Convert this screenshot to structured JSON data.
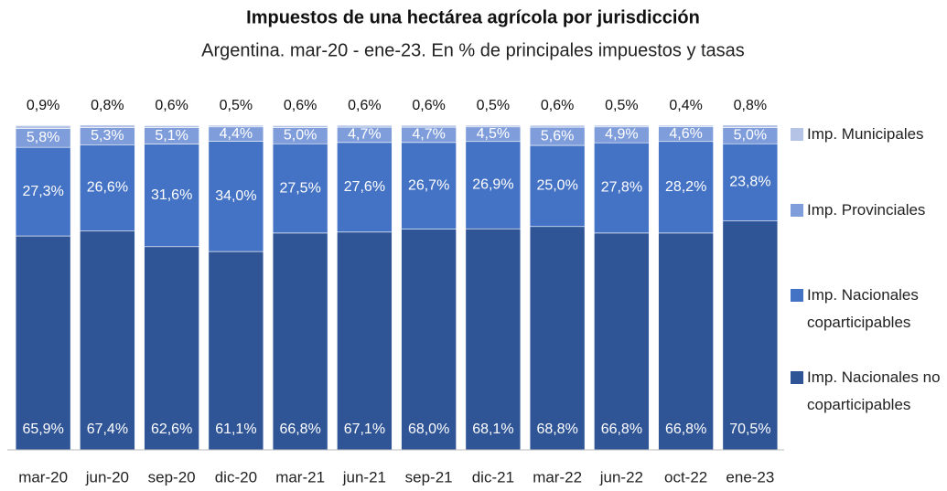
{
  "chart_data": {
    "type": "stacked_bar",
    "title": "Impuestos de una hectárea agrícola por jurisdicción",
    "subtitle": "Argentina. mar-20 - ene-23. En % de principales impuestos y tasas",
    "categories": [
      "mar-20",
      "jun-20",
      "sep-20",
      "dic-20",
      "mar-21",
      "jun-21",
      "sep-21",
      "dic-21",
      "mar-22",
      "jun-22",
      "oct-22",
      "ene-23"
    ],
    "ylim": [
      0,
      100
    ],
    "legend": "right",
    "series": [
      {
        "name": "Imp. Nacionales no coparticipables",
        "color": "#2f5597",
        "values": [
          65.9,
          67.4,
          62.6,
          61.1,
          66.8,
          67.1,
          68.0,
          68.1,
          68.8,
          66.8,
          66.8,
          70.5
        ],
        "value_labels": [
          "65,9%",
          "67,4%",
          "62,6%",
          "61,1%",
          "66,8%",
          "67,1%",
          "68,0%",
          "68,1%",
          "68,8%",
          "66,8%",
          "66,8%",
          "70,5%"
        ]
      },
      {
        "name": "Imp. Nacionales coparticipables",
        "color": "#4472c4",
        "values": [
          27.3,
          26.6,
          31.6,
          34.0,
          27.5,
          27.6,
          26.7,
          26.9,
          25.0,
          27.8,
          28.2,
          23.8
        ],
        "value_labels": [
          "27,3%",
          "26,6%",
          "31,6%",
          "34,0%",
          "27,5%",
          "27,6%",
          "26,7%",
          "26,9%",
          "25,0%",
          "27,8%",
          "28,2%",
          "23,8%"
        ]
      },
      {
        "name": "Imp. Provinciales",
        "color": "#7f9ddb",
        "values": [
          5.8,
          5.3,
          5.1,
          4.4,
          5.0,
          4.7,
          4.7,
          4.5,
          5.6,
          4.9,
          4.6,
          5.0
        ],
        "value_labels": [
          "5,8%",
          "5,3%",
          "5,1%",
          "4,4%",
          "5,0%",
          "4,7%",
          "4,7%",
          "4,5%",
          "5,6%",
          "4,9%",
          "4,6%",
          "5,0%"
        ]
      },
      {
        "name": "Imp. Municipales",
        "color": "#b4c3e6",
        "values": [
          0.9,
          0.8,
          0.6,
          0.5,
          0.6,
          0.6,
          0.6,
          0.5,
          0.6,
          0.5,
          0.4,
          0.8
        ],
        "value_labels": [
          "0,9%",
          "0,8%",
          "0,6%",
          "0,5%",
          "0,6%",
          "0,6%",
          "0,6%",
          "0,5%",
          "0,6%",
          "0,5%",
          "0,4%",
          "0,8%"
        ]
      }
    ]
  }
}
